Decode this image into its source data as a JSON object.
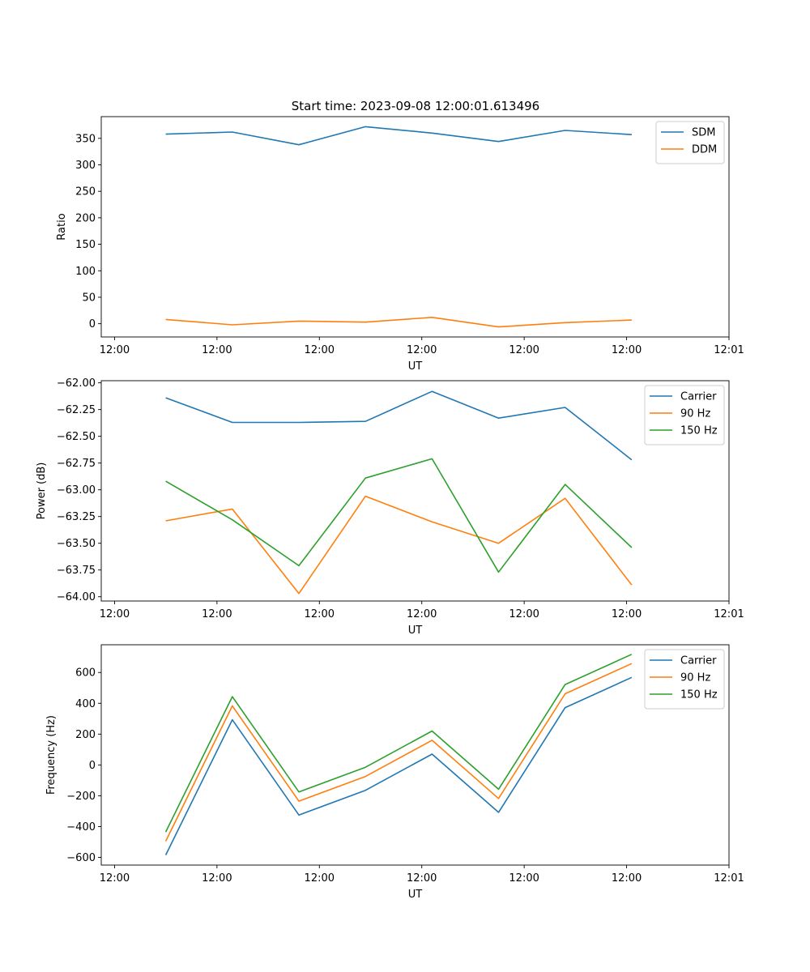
{
  "figure_title": "Start time: 2023-09-08 12:00:01.613496",
  "colors": {
    "blue": "#1f77b4",
    "orange": "#ff7f0e",
    "green": "#2ca02c"
  },
  "chart_data": [
    {
      "type": "line",
      "title": "Start time: 2023-09-08 12:00:01.613496",
      "xlabel": "UT",
      "ylabel": "Ratio",
      "x": [
        0.5,
        1.15,
        1.8,
        2.45,
        3.1,
        3.75,
        4.4,
        5.05
      ],
      "xlim": [
        -0.13,
        6.0
      ],
      "xticks": [
        0,
        1,
        2,
        3,
        4,
        5,
        6
      ],
      "xticklabels": [
        "12:00",
        "12:00",
        "12:00",
        "12:00",
        "12:00",
        "12:00",
        "12:01"
      ],
      "ylim": [
        -25,
        391
      ],
      "yticks": [
        0,
        50,
        100,
        150,
        200,
        250,
        300,
        350
      ],
      "yticklabels": [
        "0",
        "50",
        "100",
        "150",
        "200",
        "250",
        "300",
        "350"
      ],
      "legend": "top-right",
      "series": [
        {
          "name": "SDM",
          "color": "#1f77b4",
          "values": [
            358,
            362,
            338,
            372,
            360,
            344,
            365,
            357
          ]
        },
        {
          "name": "DDM",
          "color": "#ff7f0e",
          "values": [
            8,
            -2,
            5,
            3,
            12,
            -6,
            2,
            7
          ]
        }
      ]
    },
    {
      "type": "line",
      "title": "",
      "xlabel": "UT",
      "ylabel": "Power (dB)",
      "x": [
        0.5,
        1.15,
        1.8,
        2.45,
        3.1,
        3.75,
        4.4,
        5.05
      ],
      "xlim": [
        -0.13,
        6.0
      ],
      "xticks": [
        0,
        1,
        2,
        3,
        4,
        5,
        6
      ],
      "xticklabels": [
        "12:00",
        "12:00",
        "12:00",
        "12:00",
        "12:00",
        "12:00",
        "12:01"
      ],
      "ylim": [
        -64.04,
        -61.98
      ],
      "yticks": [
        -64.0,
        -63.75,
        -63.5,
        -63.25,
        -63.0,
        -62.75,
        -62.5,
        -62.25,
        -62.0
      ],
      "yticklabels": [
        "−64.00",
        "−63.75",
        "−63.50",
        "−63.25",
        "−63.00",
        "−62.75",
        "−62.50",
        "−62.25",
        "−62.00"
      ],
      "legend": "top-right",
      "series": [
        {
          "name": "Carrier",
          "color": "#1f77b4",
          "values": [
            -62.14,
            -62.37,
            -62.37,
            -62.36,
            -62.08,
            -62.33,
            -62.23,
            -62.72
          ]
        },
        {
          "name": "90 Hz",
          "color": "#ff7f0e",
          "values": [
            -63.29,
            -63.18,
            -63.97,
            -63.06,
            -63.3,
            -63.5,
            -63.08,
            -63.89
          ]
        },
        {
          "name": "150 Hz",
          "color": "#2ca02c",
          "values": [
            -62.92,
            -63.28,
            -63.71,
            -62.89,
            -62.71,
            -63.77,
            -62.95,
            -63.54
          ]
        }
      ]
    },
    {
      "type": "line",
      "title": "",
      "xlabel": "UT",
      "ylabel": "Frequency (Hz)",
      "x": [
        0.5,
        1.15,
        1.8,
        2.45,
        3.1,
        3.75,
        4.4,
        5.05
      ],
      "xlim": [
        -0.13,
        6.0
      ],
      "xticks": [
        0,
        1,
        2,
        3,
        4,
        5,
        6
      ],
      "xticklabels": [
        "12:00",
        "12:00",
        "12:00",
        "12:00",
        "12:00",
        "12:00",
        "12:01"
      ],
      "ylim": [
        -650,
        780
      ],
      "yticks": [
        -600,
        -400,
        -200,
        0,
        200,
        400,
        600
      ],
      "yticklabels": [
        "−600",
        "−400",
        "−200",
        "0",
        "200",
        "400",
        "600"
      ],
      "legend": "top-right",
      "series": [
        {
          "name": "Carrier",
          "color": "#1f77b4",
          "values": [
            -585,
            293,
            -325,
            -165,
            70,
            -308,
            372,
            568
          ]
        },
        {
          "name": "90 Hz",
          "color": "#ff7f0e",
          "values": [
            -495,
            383,
            -235,
            -75,
            160,
            -218,
            462,
            658
          ]
        },
        {
          "name": "150 Hz",
          "color": "#2ca02c",
          "values": [
            -435,
            443,
            -175,
            -15,
            220,
            -158,
            522,
            718
          ]
        }
      ]
    }
  ]
}
